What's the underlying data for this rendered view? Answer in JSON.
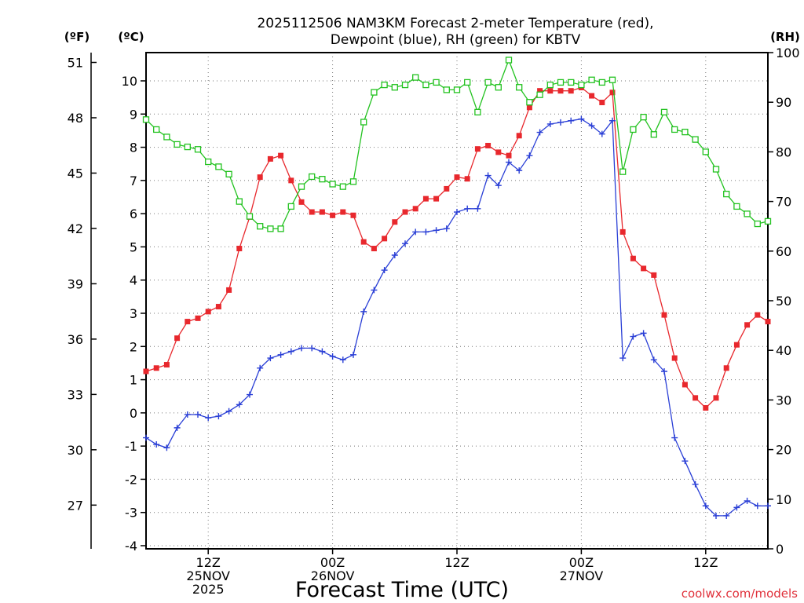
{
  "chart_data": {
    "type": "line",
    "title_line1": "2025112506 NAM3KM Forecast 2-meter Temperature (red),",
    "title_line2": "Dewpoint (blue), RH (green) for KBTV",
    "xlabel": "Forecast Time (UTC)",
    "credit": "coolwx.com/models",
    "unit_f": "(ºF)",
    "unit_c": "(ºC)",
    "unit_rh": "(RH)",
    "x_range_hours": [
      0,
      60
    ],
    "x_ticks": [
      {
        "hour": 6,
        "lines": [
          "12Z",
          "25NOV",
          "2025"
        ]
      },
      {
        "hour": 18,
        "lines": [
          "00Z",
          "26NOV"
        ]
      },
      {
        "hour": 30,
        "lines": [
          "12Z"
        ]
      },
      {
        "hour": 42,
        "lines": [
          "00Z",
          "27NOV"
        ]
      },
      {
        "hour": 54,
        "lines": [
          "12Z"
        ]
      }
    ],
    "c_range": [
      -4,
      10.5
    ],
    "c_ticks": [
      "-4",
      "-3",
      "-2",
      "-1",
      "0",
      "1",
      "2",
      "3",
      "4",
      "5",
      "6",
      "7",
      "8",
      "9",
      "10"
    ],
    "f_ticks": [
      "27",
      "30",
      "33",
      "36",
      "39",
      "42",
      "45",
      "48",
      "51"
    ],
    "rh_range": [
      0,
      100
    ],
    "rh_ticks": [
      "0",
      "10",
      "20",
      "30",
      "40",
      "50",
      "60",
      "70",
      "80",
      "90",
      "100"
    ],
    "grid": true,
    "series": [
      {
        "name": "Temperature",
        "unit": "C",
        "color": "#e8282d",
        "marker": "square-filled",
        "x": [
          0,
          1,
          2,
          3,
          4,
          5,
          6,
          7,
          8,
          9,
          10,
          11,
          12,
          13,
          14,
          15,
          16,
          17,
          18,
          19,
          20,
          21,
          22,
          23,
          24,
          25,
          26,
          27,
          28,
          29,
          30,
          31,
          32,
          33,
          34,
          35,
          36,
          37,
          38,
          39,
          40,
          41,
          42,
          43,
          44,
          45,
          46,
          47,
          48,
          49,
          50,
          51,
          52,
          53,
          54,
          55,
          56,
          57,
          58,
          59,
          60
        ],
        "y": [
          1.25,
          1.35,
          1.45,
          2.25,
          2.75,
          2.85,
          3.05,
          3.2,
          3.7,
          4.95,
          5.9,
          7.1,
          7.65,
          7.75,
          7.0,
          6.35,
          6.05,
          6.05,
          5.95,
          6.05,
          5.95,
          5.15,
          4.95,
          5.25,
          5.75,
          6.05,
          6.15,
          6.45,
          6.45,
          6.75,
          7.1,
          7.05,
          7.95,
          8.05,
          7.85,
          7.75,
          8.35,
          9.2,
          9.7,
          9.7,
          9.7,
          9.7,
          9.8,
          9.55,
          9.35,
          9.65,
          5.45,
          4.65,
          4.35,
          4.15,
          2.95,
          1.65,
          0.85,
          0.45,
          0.15,
          0.45,
          1.35,
          2.05,
          2.65,
          2.95,
          2.75
        ]
      },
      {
        "name": "Dewpoint",
        "unit": "C",
        "color": "#2a3fd6",
        "marker": "plus",
        "x": [
          0,
          1,
          2,
          3,
          4,
          5,
          6,
          7,
          8,
          9,
          10,
          11,
          12,
          13,
          14,
          15,
          16,
          17,
          18,
          19,
          20,
          21,
          22,
          23,
          24,
          25,
          26,
          27,
          28,
          29,
          30,
          31,
          32,
          33,
          34,
          35,
          36,
          37,
          38,
          39,
          40,
          41,
          42,
          43,
          44,
          45,
          46,
          47,
          48,
          49,
          50,
          51,
          52,
          53,
          54,
          55,
          56,
          57,
          58,
          59,
          60
        ],
        "y": [
          -0.75,
          -0.95,
          -1.05,
          -0.45,
          -0.05,
          -0.05,
          -0.15,
          -0.1,
          0.05,
          0.25,
          0.55,
          1.35,
          1.65,
          1.75,
          1.85,
          1.95,
          1.95,
          1.85,
          1.7,
          1.6,
          1.75,
          3.05,
          3.7,
          4.3,
          4.75,
          5.1,
          5.45,
          5.45,
          5.5,
          5.55,
          6.05,
          6.15,
          6.15,
          7.15,
          6.85,
          7.55,
          7.3,
          7.75,
          8.45,
          8.7,
          8.75,
          8.8,
          8.85,
          8.65,
          8.4,
          8.8,
          1.65,
          2.3,
          2.4,
          1.6,
          1.25,
          -0.75,
          -1.45,
          -2.15,
          -2.8,
          -3.1,
          -3.1,
          -2.85,
          -2.65,
          -2.8,
          -2.8
        ]
      },
      {
        "name": "RH",
        "unit": "%",
        "color": "#22c21f",
        "marker": "square-open",
        "x": [
          0,
          1,
          2,
          3,
          4,
          5,
          6,
          7,
          8,
          9,
          10,
          11,
          12,
          13,
          14,
          15,
          16,
          17,
          18,
          19,
          20,
          21,
          22,
          23,
          24,
          25,
          26,
          27,
          28,
          29,
          30,
          31,
          32,
          33,
          34,
          35,
          36,
          37,
          38,
          39,
          40,
          41,
          42,
          43,
          44,
          45,
          46,
          47,
          48,
          49,
          50,
          51,
          52,
          53,
          54,
          55,
          56,
          57,
          58,
          59,
          60
        ],
        "y": [
          86.5,
          84.5,
          83,
          81.5,
          81,
          80.5,
          78,
          77,
          75.5,
          70,
          67,
          65,
          64.5,
          64.5,
          69,
          73,
          75,
          74.5,
          73.5,
          73,
          74,
          86,
          92,
          93.5,
          93,
          93.5,
          95,
          93.5,
          94,
          92.5,
          92.5,
          94,
          88,
          94,
          93,
          98.5,
          93,
          90,
          91.5,
          93.5,
          94,
          94,
          93.5,
          94.5,
          94,
          94.5,
          76,
          84.5,
          87,
          83.5,
          88,
          84.5,
          84,
          82.5,
          80,
          76.5,
          71.5,
          69,
          67.5,
          65.5,
          66
        ]
      }
    ]
  }
}
